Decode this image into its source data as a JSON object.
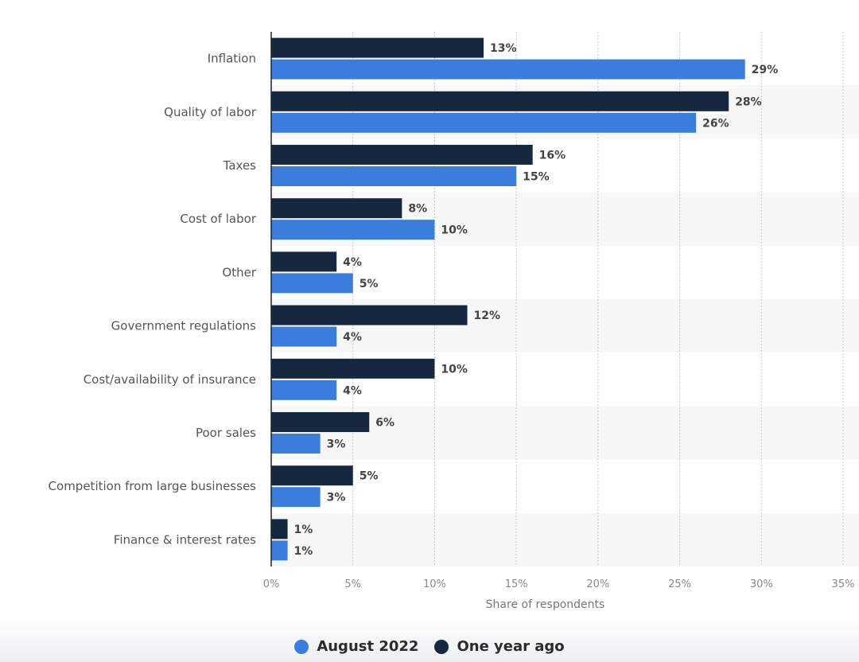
{
  "chart_data": {
    "type": "bar",
    "orientation": "horizontal",
    "categories": [
      "Inflation",
      "Quality of labor",
      "Taxes",
      "Cost of labor",
      "Other",
      "Government regulations",
      "Cost/availability of insurance",
      "Poor sales",
      "Competition from large businesses",
      "Finance & interest rates"
    ],
    "series": [
      {
        "name": "One year ago",
        "color": "#162740",
        "values": [
          13,
          28,
          16,
          8,
          4,
          12,
          10,
          6,
          5,
          1
        ]
      },
      {
        "name": "August 2022",
        "color": "#3b7ddd",
        "values": [
          29,
          26,
          15,
          10,
          5,
          4,
          4,
          3,
          3,
          1
        ]
      }
    ],
    "xlabel": "Share of respondents",
    "ylabel": "",
    "xlim": [
      0,
      35
    ],
    "ticks": [
      0,
      5,
      10,
      15,
      20,
      25,
      30,
      35
    ],
    "tick_suffix": "%",
    "value_suffix": "%",
    "grid": true,
    "legend_position": "bottom-center"
  },
  "legend": {
    "items": [
      {
        "label": "August 2022",
        "color": "#3b7ddd"
      },
      {
        "label": "One year ago",
        "color": "#162740"
      }
    ]
  }
}
